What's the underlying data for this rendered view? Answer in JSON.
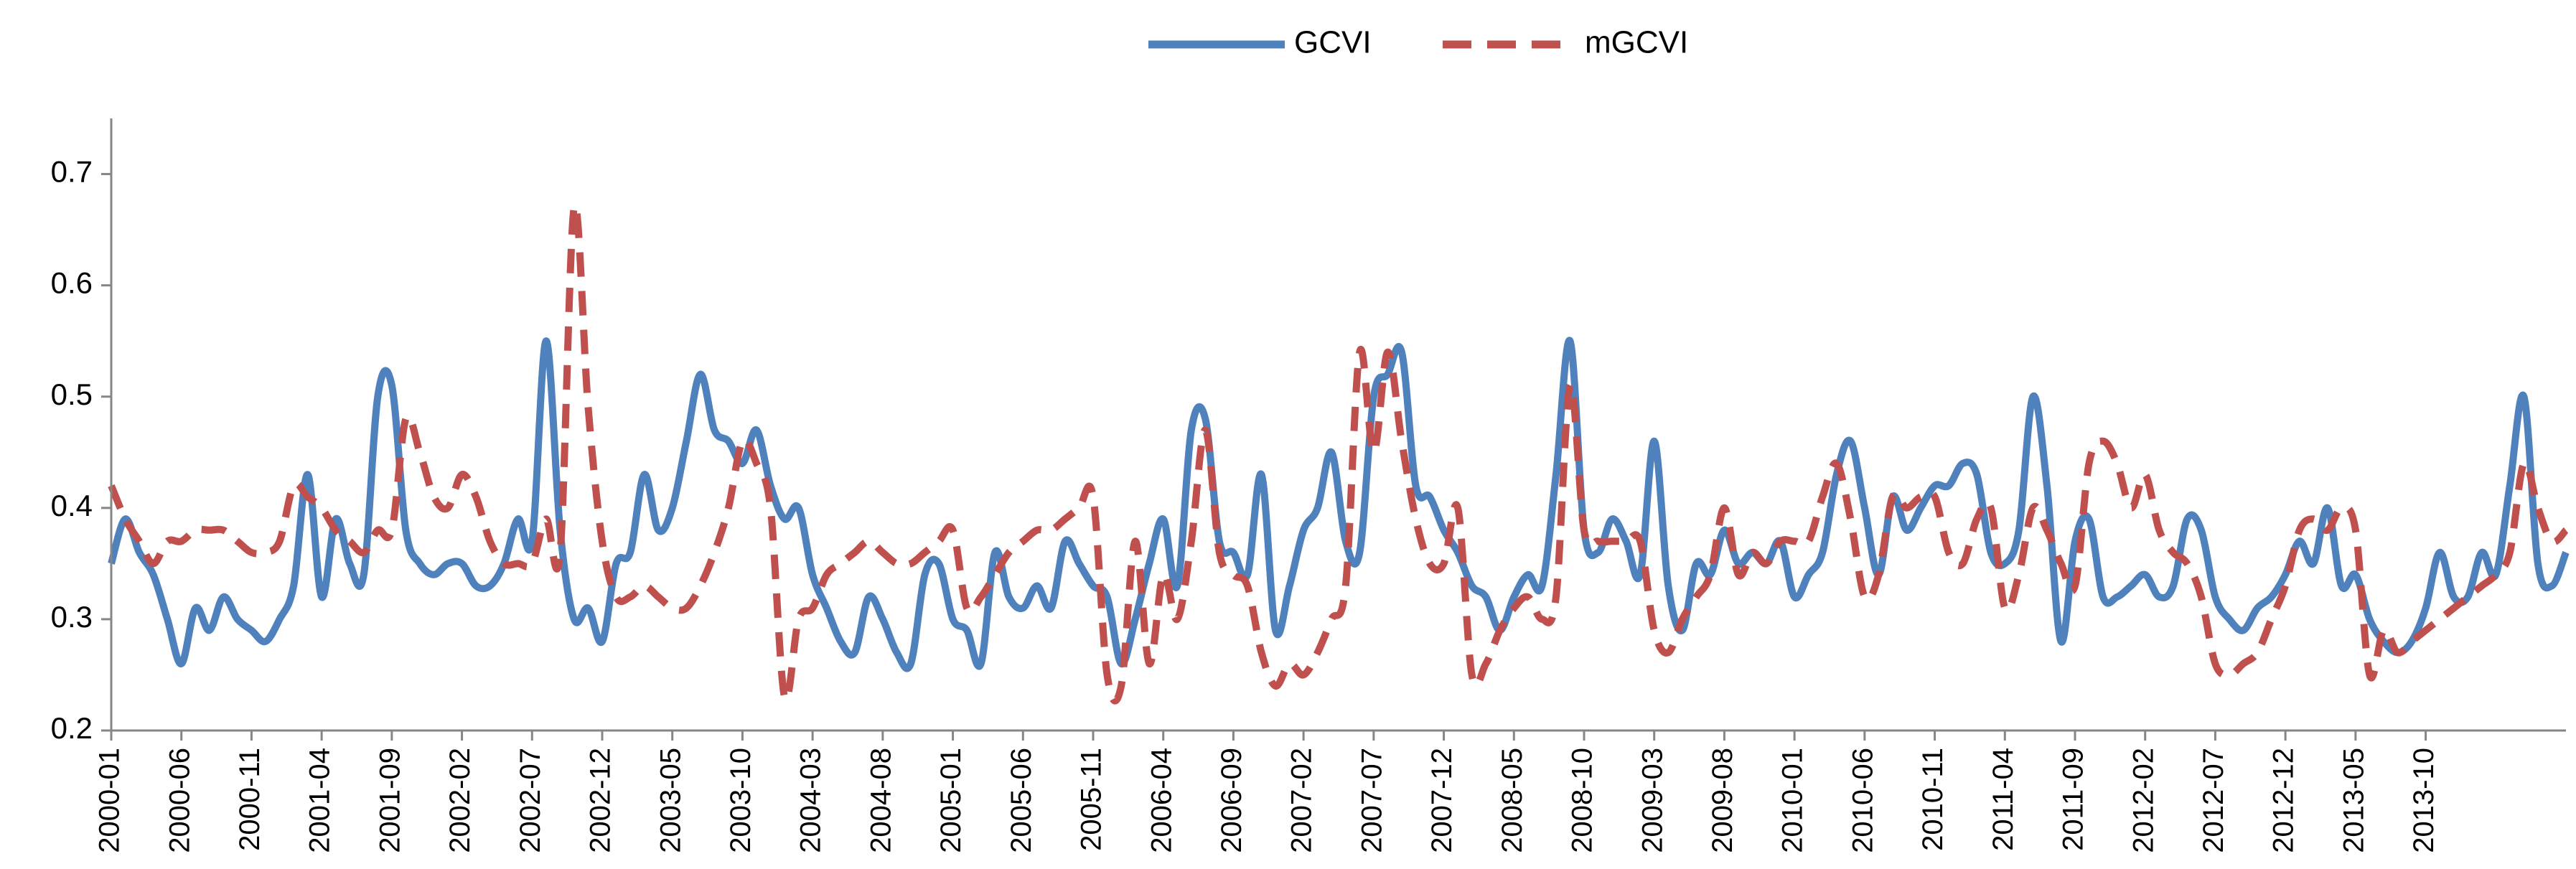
{
  "chart_data": {
    "type": "line",
    "title": "",
    "xlabel": "",
    "ylabel": "",
    "ylim": [
      0.2,
      0.75
    ],
    "y_ticks": [
      "0.2",
      "0.3",
      "0.4",
      "0.5",
      "0.6",
      "0.7"
    ],
    "x_tick_labels": [
      "2000-01",
      "2000-06",
      "2000-11",
      "2001-04",
      "2001-09",
      "2002-02",
      "2002-07",
      "2002-12",
      "2003-05",
      "2003-10",
      "2004-03",
      "2004-08",
      "2005-01",
      "2005-06",
      "2005-11",
      "2006-04",
      "2006-09",
      "2007-02",
      "2007-07",
      "2007-12",
      "2008-05",
      "2008-10",
      "2009-03",
      "2009-08",
      "2010-01",
      "2010-06",
      "2010-11",
      "2011-04",
      "2011-09",
      "2012-02",
      "2012-07",
      "2012-12",
      "2013-05",
      "2013-10"
    ],
    "x_start": "2000-01",
    "period": "monthly",
    "legend_position": "top-center",
    "series": [
      {
        "name": "GCVI",
        "color": "#4F81BD",
        "dash": "solid",
        "values": [
          0.35,
          0.39,
          0.36,
          0.34,
          0.3,
          0.26,
          0.31,
          0.29,
          0.32,
          0.3,
          0.29,
          0.28,
          0.3,
          0.33,
          0.43,
          0.32,
          0.39,
          0.35,
          0.34,
          0.5,
          0.51,
          0.38,
          0.35,
          0.34,
          0.35,
          0.35,
          0.33,
          0.33,
          0.35,
          0.39,
          0.37,
          0.55,
          0.38,
          0.3,
          0.31,
          0.28,
          0.35,
          0.36,
          0.43,
          0.38,
          0.4,
          0.46,
          0.52,
          0.47,
          0.46,
          0.44,
          0.47,
          0.42,
          0.39,
          0.4,
          0.34,
          0.31,
          0.28,
          0.27,
          0.32,
          0.3,
          0.27,
          0.26,
          0.34,
          0.35,
          0.3,
          0.29,
          0.26,
          0.36,
          0.32,
          0.31,
          0.33,
          0.31,
          0.37,
          0.35,
          0.33,
          0.32,
          0.26,
          0.3,
          0.35,
          0.39,
          0.33,
          0.47,
          0.48,
          0.37,
          0.36,
          0.34,
          0.43,
          0.29,
          0.33,
          0.38,
          0.4,
          0.45,
          0.37,
          0.36,
          0.5,
          0.52,
          0.54,
          0.42,
          0.41,
          0.38,
          0.36,
          0.33,
          0.32,
          0.29,
          0.32,
          0.34,
          0.33,
          0.43,
          0.55,
          0.38,
          0.36,
          0.39,
          0.37,
          0.34,
          0.46,
          0.33,
          0.29,
          0.35,
          0.34,
          0.38,
          0.35,
          0.36,
          0.35,
          0.37,
          0.32,
          0.34,
          0.36,
          0.43,
          0.46,
          0.4,
          0.34,
          0.41,
          0.38,
          0.4,
          0.42,
          0.42,
          0.44,
          0.43,
          0.36,
          0.35,
          0.38,
          0.5,
          0.42,
          0.28,
          0.37,
          0.39,
          0.32,
          0.32,
          0.33,
          0.34,
          0.32,
          0.33,
          0.39,
          0.38,
          0.32,
          0.3,
          0.29,
          0.31,
          0.32,
          0.34,
          0.37,
          0.35,
          0.4,
          0.33,
          0.34,
          0.3,
          0.28,
          0.27,
          0.28,
          0.31,
          0.36,
          0.32,
          0.32,
          0.36,
          0.34,
          0.42,
          0.5,
          0.35,
          0.33,
          0.36
        ]
      },
      {
        "name": "mGCVI",
        "color": "#C0504D",
        "dash": "dashed",
        "values": [
          0.42,
          0.39,
          0.37,
          0.35,
          0.37,
          0.37,
          0.38,
          0.38,
          0.38,
          0.37,
          0.36,
          0.36,
          0.37,
          0.42,
          0.41,
          0.4,
          0.38,
          0.37,
          0.36,
          0.38,
          0.38,
          0.48,
          0.45,
          0.41,
          0.4,
          0.43,
          0.41,
          0.37,
          0.35,
          0.35,
          0.35,
          0.39,
          0.36,
          0.67,
          0.49,
          0.37,
          0.32,
          0.32,
          0.33,
          0.32,
          0.31,
          0.31,
          0.33,
          0.36,
          0.4,
          0.46,
          0.44,
          0.4,
          0.23,
          0.3,
          0.31,
          0.34,
          0.35,
          0.36,
          0.37,
          0.36,
          0.35,
          0.35,
          0.36,
          0.37,
          0.38,
          0.31,
          0.32,
          0.34,
          0.36,
          0.37,
          0.38,
          0.38,
          0.39,
          0.4,
          0.41,
          0.25,
          0.24,
          0.37,
          0.26,
          0.34,
          0.3,
          0.37,
          0.47,
          0.36,
          0.34,
          0.33,
          0.27,
          0.24,
          0.26,
          0.25,
          0.27,
          0.3,
          0.33,
          0.54,
          0.45,
          0.54,
          0.46,
          0.39,
          0.35,
          0.35,
          0.4,
          0.25,
          0.26,
          0.29,
          0.31,
          0.32,
          0.3,
          0.32,
          0.51,
          0.38,
          0.37,
          0.37,
          0.37,
          0.37,
          0.29,
          0.27,
          0.3,
          0.32,
          0.34,
          0.4,
          0.34,
          0.36,
          0.35,
          0.37,
          0.37,
          0.37,
          0.41,
          0.44,
          0.39,
          0.32,
          0.34,
          0.41,
          0.4,
          0.41,
          0.41,
          0.36,
          0.35,
          0.39,
          0.4,
          0.31,
          0.34,
          0.4,
          0.38,
          0.35,
          0.33,
          0.44,
          0.46,
          0.44,
          0.4,
          0.43,
          0.38,
          0.36,
          0.35,
          0.32,
          0.26,
          0.25,
          0.26,
          0.27,
          0.3,
          0.33,
          0.38,
          0.39,
          0.38,
          0.4,
          0.38,
          0.25,
          0.29,
          0.27,
          0.28,
          0.29,
          0.3,
          0.31,
          0.32,
          0.33,
          0.34,
          0.36,
          0.44,
          0.4,
          0.37,
          0.38
        ]
      }
    ]
  }
}
